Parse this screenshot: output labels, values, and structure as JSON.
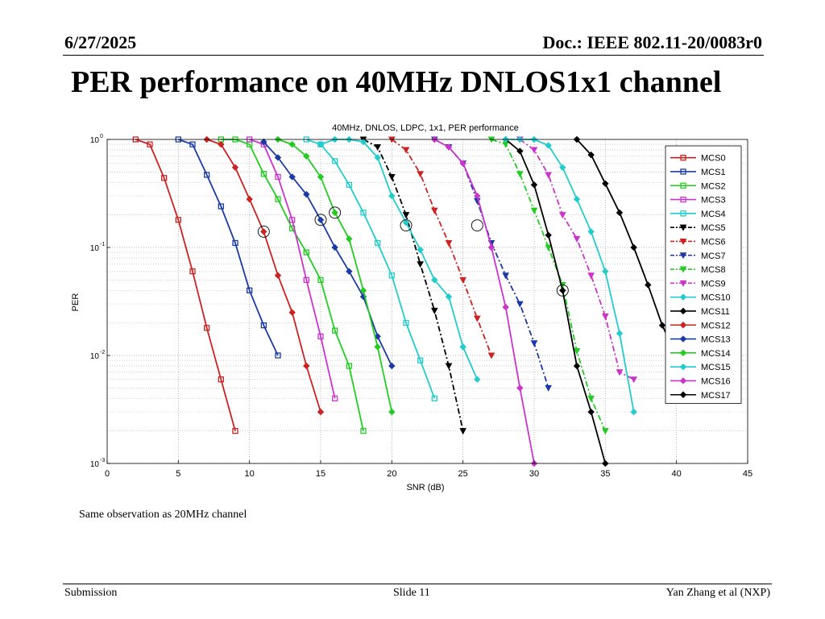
{
  "header": {
    "date": "6/27/2025",
    "doc": "Doc.: IEEE 802.11-20/0083r0"
  },
  "title": "PER performance on 40MHz DNLOS1x1 channel",
  "note": "Same observation as 20MHz channel",
  "footer": {
    "left": "Submission",
    "center": "Slide 11",
    "right": "Yan Zhang et al (NXP)"
  },
  "chart_data": {
    "type": "line",
    "title": "40MHz, DNLOS, LDPC, 1x1, PER performance",
    "xlabel": "SNR (dB)",
    "ylabel": "PER",
    "xlim": [
      0,
      45
    ],
    "ylim": [
      0.001,
      1
    ],
    "yscale": "log",
    "grid": true,
    "legend_position": "right",
    "xticks": [
      "0",
      "5",
      "10",
      "15",
      "20",
      "25",
      "30",
      "35",
      "40",
      "45"
    ],
    "yticks": [
      {
        "value": 1,
        "base": "10",
        "exp": "0"
      },
      {
        "value": 0.1,
        "base": "10",
        "exp": "-1"
      },
      {
        "value": 0.01,
        "base": "10",
        "exp": "-2"
      },
      {
        "value": 0.001,
        "base": "10",
        "exp": "-3"
      }
    ],
    "series": [
      {
        "name": "MCS0",
        "color": "#cc2222",
        "marker": "square",
        "dash": "solid",
        "points": [
          [
            2,
            1
          ],
          [
            3,
            0.9
          ],
          [
            4,
            0.44
          ],
          [
            5,
            0.18
          ],
          [
            6,
            0.06
          ],
          [
            7,
            0.018
          ],
          [
            8,
            0.006
          ],
          [
            9,
            0.002
          ]
        ]
      },
      {
        "name": "MCS1",
        "color": "#1c3aa6",
        "marker": "square",
        "dash": "solid",
        "points": [
          [
            5,
            1
          ],
          [
            6,
            0.9
          ],
          [
            7,
            0.47
          ],
          [
            8,
            0.24
          ],
          [
            9,
            0.11
          ],
          [
            10,
            0.04
          ],
          [
            11,
            0.019
          ],
          [
            12,
            0.01
          ]
        ]
      },
      {
        "name": "MCS2",
        "color": "#22cc22",
        "marker": "square",
        "dash": "solid",
        "points": [
          [
            8,
            1
          ],
          [
            9,
            1
          ],
          [
            10,
            0.9
          ],
          [
            11,
            0.48
          ],
          [
            12,
            0.28
          ],
          [
            13,
            0.15
          ],
          [
            14,
            0.09
          ],
          [
            15,
            0.05
          ],
          [
            16,
            0.017
          ],
          [
            17,
            0.008
          ],
          [
            18,
            0.002
          ]
        ]
      },
      {
        "name": "MCS3",
        "color": "#cc33cc",
        "marker": "square",
        "dash": "solid",
        "points": [
          [
            10,
            1
          ],
          [
            11,
            0.9
          ],
          [
            12,
            0.45
          ],
          [
            13,
            0.18
          ],
          [
            14,
            0.05
          ],
          [
            15,
            0.015
          ],
          [
            16,
            0.004
          ]
        ]
      },
      {
        "name": "MCS4",
        "color": "#22cccc",
        "marker": "square",
        "dash": "solid",
        "points": [
          [
            14,
            1
          ],
          [
            15,
            0.9
          ],
          [
            16,
            0.63
          ],
          [
            17,
            0.38
          ],
          [
            18,
            0.21
          ],
          [
            19,
            0.11
          ],
          [
            20,
            0.055
          ],
          [
            21,
            0.02
          ],
          [
            22,
            0.009
          ],
          [
            23,
            0.004
          ]
        ]
      },
      {
        "name": "MCS5",
        "color": "#000000",
        "marker": "triangle",
        "dash": "dashdot",
        "points": [
          [
            18,
            1
          ],
          [
            19,
            0.85
          ],
          [
            20,
            0.45
          ],
          [
            21,
            0.2
          ],
          [
            22,
            0.07
          ],
          [
            23,
            0.026
          ],
          [
            24,
            0.008
          ],
          [
            25,
            0.002
          ]
        ]
      },
      {
        "name": "MCS6",
        "color": "#cc2222",
        "marker": "triangle",
        "dash": "dashdot",
        "points": [
          [
            20,
            1
          ],
          [
            21,
            0.8
          ],
          [
            22,
            0.48
          ],
          [
            23,
            0.22
          ],
          [
            24,
            0.11
          ],
          [
            25,
            0.05
          ],
          [
            26,
            0.022
          ],
          [
            27,
            0.01
          ]
        ]
      },
      {
        "name": "MCS7",
        "color": "#1c3aa6",
        "marker": "triangle",
        "dash": "dashdot",
        "points": [
          [
            23,
            1
          ],
          [
            24,
            0.85
          ],
          [
            25,
            0.6
          ],
          [
            26,
            0.27
          ],
          [
            27,
            0.11
          ],
          [
            28,
            0.055
          ],
          [
            29,
            0.03
          ],
          [
            30,
            0.013
          ],
          [
            31,
            0.005
          ]
        ]
      },
      {
        "name": "MCS8",
        "color": "#22cc22",
        "marker": "triangle",
        "dash": "dashdot",
        "points": [
          [
            27,
            1
          ],
          [
            28,
            0.9
          ],
          [
            29,
            0.48
          ],
          [
            30,
            0.22
          ],
          [
            31,
            0.1
          ],
          [
            32,
            0.045
          ],
          [
            33,
            0.011
          ],
          [
            34,
            0.004
          ],
          [
            35,
            0.002
          ]
        ]
      },
      {
        "name": "MCS9",
        "color": "#cc33cc",
        "marker": "triangle",
        "dash": "dashdot",
        "points": [
          [
            29,
            1
          ],
          [
            30,
            0.8
          ],
          [
            31,
            0.47
          ],
          [
            32,
            0.2
          ],
          [
            33,
            0.12
          ],
          [
            34,
            0.055
          ],
          [
            35,
            0.023
          ],
          [
            36,
            0.007
          ],
          [
            37,
            0.006
          ]
        ]
      },
      {
        "name": "MCS10",
        "color": "#22cccc",
        "marker": "diamond",
        "dash": "solid",
        "points": [
          [
            15,
            0.9
          ],
          [
            16,
            1
          ],
          [
            17,
            1
          ],
          [
            18,
            0.95
          ],
          [
            19,
            0.68
          ],
          [
            20,
            0.3
          ],
          [
            21,
            0.17
          ],
          [
            22,
            0.095
          ],
          [
            23,
            0.05
          ],
          [
            24,
            0.035
          ],
          [
            25,
            0.012
          ],
          [
            26,
            0.006
          ]
        ]
      },
      {
        "name": "MCS11",
        "color": "#000000",
        "marker": "diamond",
        "dash": "solid",
        "points": [
          [
            28,
            1
          ],
          [
            29,
            0.78
          ],
          [
            30,
            0.38
          ],
          [
            31,
            0.13
          ],
          [
            32,
            0.04
          ],
          [
            33,
            0.008
          ],
          [
            34,
            0.003
          ],
          [
            35,
            0.001
          ]
        ]
      },
      {
        "name": "MCS12",
        "color": "#cc2222",
        "marker": "diamond",
        "dash": "solid",
        "points": [
          [
            7,
            1
          ],
          [
            8,
            0.9
          ],
          [
            9,
            0.55
          ],
          [
            10,
            0.28
          ],
          [
            11,
            0.14
          ],
          [
            12,
            0.055
          ],
          [
            13,
            0.025
          ],
          [
            14,
            0.008
          ],
          [
            15,
            0.003
          ]
        ]
      },
      {
        "name": "MCS13",
        "color": "#1c3aa6",
        "marker": "diamond",
        "dash": "solid",
        "points": [
          [
            11,
            0.95
          ],
          [
            12,
            0.68
          ],
          [
            13,
            0.45
          ],
          [
            14,
            0.31
          ],
          [
            15,
            0.18
          ],
          [
            16,
            0.1
          ],
          [
            17,
            0.06
          ],
          [
            18,
            0.035
          ],
          [
            19,
            0.015
          ],
          [
            20,
            0.008
          ]
        ]
      },
      {
        "name": "MCS14",
        "color": "#22cc22",
        "marker": "diamond",
        "dash": "solid",
        "points": [
          [
            12,
            1
          ],
          [
            13,
            0.9
          ],
          [
            14,
            0.7
          ],
          [
            15,
            0.45
          ],
          [
            16,
            0.21
          ],
          [
            17,
            0.12
          ],
          [
            18,
            0.04
          ],
          [
            19,
            0.012
          ],
          [
            20,
            0.003
          ]
        ]
      },
      {
        "name": "MCS15",
        "color": "#22cccc",
        "marker": "diamond",
        "dash": "solid",
        "points": [
          [
            28,
            1
          ],
          [
            29,
            1
          ],
          [
            30,
            1
          ],
          [
            31,
            0.88
          ],
          [
            32,
            0.55
          ],
          [
            33,
            0.28
          ],
          [
            34,
            0.14
          ],
          [
            35,
            0.06
          ],
          [
            36,
            0.016
          ],
          [
            37,
            0.003
          ]
        ]
      },
      {
        "name": "MCS16",
        "color": "#cc33cc",
        "marker": "diamond",
        "dash": "solid",
        "points": [
          [
            23,
            1
          ],
          [
            24,
            0.85
          ],
          [
            25,
            0.6
          ],
          [
            26,
            0.3
          ],
          [
            27,
            0.1
          ],
          [
            28,
            0.028
          ],
          [
            29,
            0.005
          ],
          [
            30,
            0.001
          ]
        ]
      },
      {
        "name": "MCS17",
        "color": "#000000",
        "marker": "diamond",
        "dash": "solid",
        "points": [
          [
            33,
            1
          ],
          [
            34,
            0.72
          ],
          [
            35,
            0.39
          ],
          [
            36,
            0.21
          ],
          [
            37,
            0.1
          ],
          [
            38,
            0.045
          ],
          [
            39,
            0.019
          ],
          [
            40,
            0.01
          ],
          [
            41,
            0.004
          ]
        ]
      }
    ],
    "annotations": [
      {
        "type": "circle",
        "x": 11,
        "y": 0.14
      },
      {
        "type": "circle",
        "x": 15,
        "y": 0.18
      },
      {
        "type": "circle",
        "x": 16,
        "y": 0.21
      },
      {
        "type": "circle",
        "x": 21,
        "y": 0.16
      },
      {
        "type": "circle",
        "x": 26,
        "y": 0.16
      },
      {
        "type": "circle",
        "x": 32,
        "y": 0.04
      }
    ]
  }
}
